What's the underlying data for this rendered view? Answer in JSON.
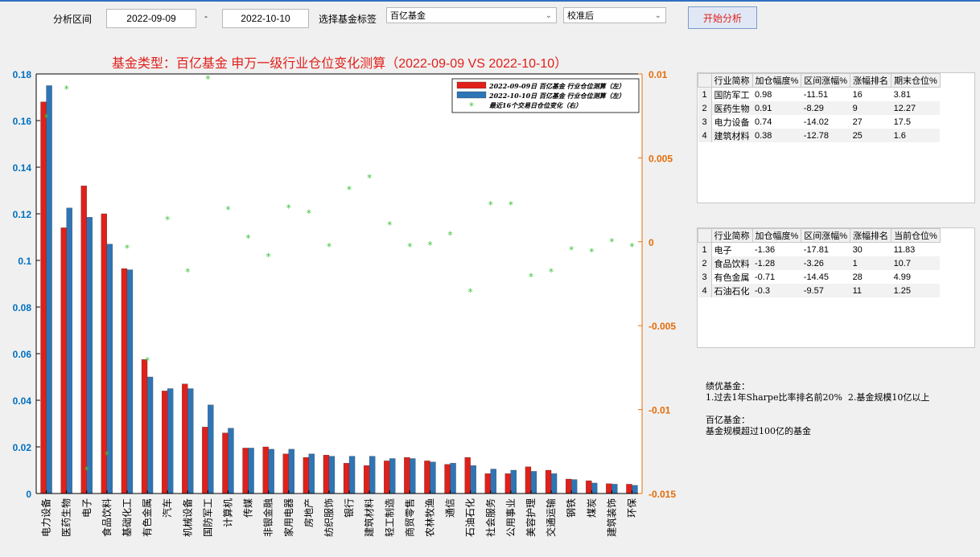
{
  "controls": {
    "period_label": "分析区间",
    "start_date": "2022-09-09",
    "separator": "-",
    "end_date": "2022-10-10",
    "tag_label": "选择基金标签",
    "tag_value": "百亿基金",
    "calib_value": "校准后",
    "start_button": "开始分析"
  },
  "chart_data": {
    "type": "bar",
    "title": "基金类型：百亿基金  申万一级行业仓位变化测算（2022-09-09 VS 2022-10-10）",
    "categories": [
      "电力设备",
      "医药生物",
      "电子",
      "食品饮料",
      "基础化工",
      "有色金属",
      "汽车",
      "机械设备",
      "国防军工",
      "计算机",
      "传媒",
      "非银金融",
      "家用电器",
      "房地产",
      "纺织服饰",
      "银行",
      "建筑材料",
      "轻工制造",
      "商贸零售",
      "农林牧渔",
      "通信",
      "石油石化",
      "社会服务",
      "公用事业",
      "美容护理",
      "交通运输",
      "钢铁",
      "煤炭",
      "建筑装饰",
      "环保"
    ],
    "series": [
      {
        "name": "2022-09-09日 百亿基金 行业仓位测算（左）",
        "color": "#e0201a",
        "axis": "left",
        "values": [
          0.168,
          0.114,
          0.132,
          0.12,
          0.0965,
          0.0575,
          0.044,
          0.047,
          0.0285,
          0.026,
          0.0195,
          0.02,
          0.017,
          0.0155,
          0.0165,
          0.013,
          0.012,
          0.014,
          0.0155,
          0.014,
          0.0125,
          0.0155,
          0.0085,
          0.0085,
          0.0115,
          0.01,
          0.0062,
          0.0055,
          0.0042,
          0.004
        ]
      },
      {
        "name": "2022-10-10日 百亿基金 行业仓位测算（左）",
        "color": "#2e75b6",
        "axis": "left",
        "values": [
          0.175,
          0.1225,
          0.1185,
          0.107,
          0.096,
          0.05,
          0.045,
          0.045,
          0.038,
          0.028,
          0.0195,
          0.019,
          0.019,
          0.017,
          0.016,
          0.016,
          0.016,
          0.015,
          0.015,
          0.0135,
          0.013,
          0.012,
          0.0105,
          0.01,
          0.0095,
          0.0085,
          0.006,
          0.0045,
          0.004,
          0.0035
        ]
      },
      {
        "name": "最近16个交易日仓位变化（右）",
        "color": "#3cc43c",
        "axis": "right",
        "marker": "*",
        "values": [
          0.0074,
          0.0091,
          -0.0136,
          -0.0127,
          -0.0004,
          -0.0071,
          0.0013,
          -0.0018,
          0.0097,
          0.0019,
          0.0002,
          -0.0009,
          0.002,
          0.0017,
          -0.0003,
          0.0031,
          0.0038,
          0.001,
          -0.0003,
          -0.0002,
          0.0004,
          -0.003,
          0.0022,
          0.0022,
          -0.0021,
          -0.0018,
          -0.0005,
          -0.0006,
          0.0,
          -0.0003
        ]
      }
    ],
    "left_axis": {
      "ylim": [
        0,
        0.18
      ],
      "ticks": [
        0,
        0.02,
        0.04,
        0.06,
        0.08,
        0.1,
        0.12,
        0.14,
        0.16,
        0.18
      ],
      "tick_labels": [
        "0",
        "0.02",
        "0.04",
        "0.06",
        "0.08",
        "0.1",
        "0.12",
        "0.14",
        "0.16",
        "0.18"
      ],
      "color": "#0070c0"
    },
    "right_axis": {
      "ylim": [
        -0.015,
        0.01
      ],
      "ticks": [
        -0.015,
        -0.01,
        -0.005,
        0,
        0.005,
        0.01
      ],
      "tick_labels": [
        "-0.015",
        "-0.01",
        "-0.005",
        "0",
        "0.005",
        "0.01"
      ],
      "color": "#e46c0a"
    },
    "legend_placement": "top-right",
    "grid": false
  },
  "table_increase": {
    "headers": [
      "行业简称",
      "加仓幅度%",
      "区间涨幅%",
      "涨幅排名",
      "期末仓位%"
    ],
    "rows": [
      [
        "1",
        "国防军工",
        "0.98",
        "-11.51",
        "16",
        "3.81"
      ],
      [
        "2",
        "医药生物",
        "0.91",
        "-8.29",
        "9",
        "12.27"
      ],
      [
        "3",
        "电力设备",
        "0.74",
        "-14.02",
        "27",
        "17.5"
      ],
      [
        "4",
        "建筑材料",
        "0.38",
        "-12.78",
        "25",
        "1.6"
      ]
    ]
  },
  "table_decrease": {
    "headers": [
      "行业简称",
      "加仓幅度%",
      "区间涨幅%",
      "涨幅排名",
      "当前仓位%"
    ],
    "rows": [
      [
        "1",
        "电子",
        "-1.36",
        "-17.81",
        "30",
        "11.83"
      ],
      [
        "2",
        "食品饮料",
        "-1.28",
        "-3.26",
        "1",
        "10.7"
      ],
      [
        "3",
        "有色金属",
        "-0.71",
        "-14.45",
        "28",
        "4.99"
      ],
      [
        "4",
        "石油石化",
        "-0.3",
        "-9.57",
        "11",
        "1.25"
      ]
    ]
  },
  "notes": {
    "line1": "绩优基金：",
    "line2": "1.过去1年Sharpe比率排名前20%  2.基金规模10亿以上",
    "line3": "百亿基金：",
    "line4": "基金规模超过100亿的基金"
  }
}
